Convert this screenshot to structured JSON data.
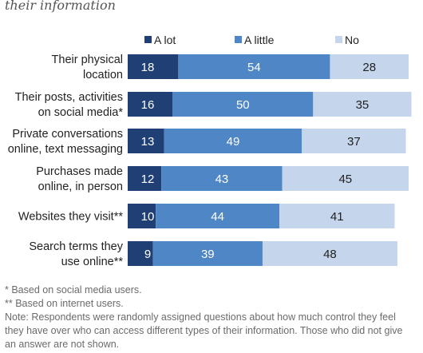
{
  "title_partial": "their information",
  "chart_data": {
    "type": "bar",
    "orientation": "horizontal",
    "stacked": true,
    "categories": [
      [
        "Their physical",
        "location"
      ],
      [
        "Their posts, activities",
        "on social media*"
      ],
      [
        "Private conversations",
        "online, text messaging"
      ],
      [
        "Purchases made",
        "online, in person"
      ],
      [
        "Websites they visit**"
      ],
      [
        "Search terms they",
        "use online**"
      ]
    ],
    "series": [
      {
        "name": "A lot",
        "color": "#1f3f75",
        "values": [
          18,
          16,
          13,
          12,
          10,
          9
        ]
      },
      {
        "name": "A little",
        "color": "#4f86c6",
        "values": [
          54,
          50,
          49,
          43,
          44,
          39
        ]
      },
      {
        "name": "No",
        "color": "#c5d5ec",
        "values": [
          28,
          35,
          37,
          45,
          41,
          48
        ]
      }
    ],
    "legend_position": "top",
    "grid": false
  },
  "notes": [
    "* Based on social media users.",
    "** Based on internet users.",
    "Note: Respondents were randomly assigned questions about how much control they feel they have over who can access different types of their information. Those who did not give an answer are not shown."
  ]
}
